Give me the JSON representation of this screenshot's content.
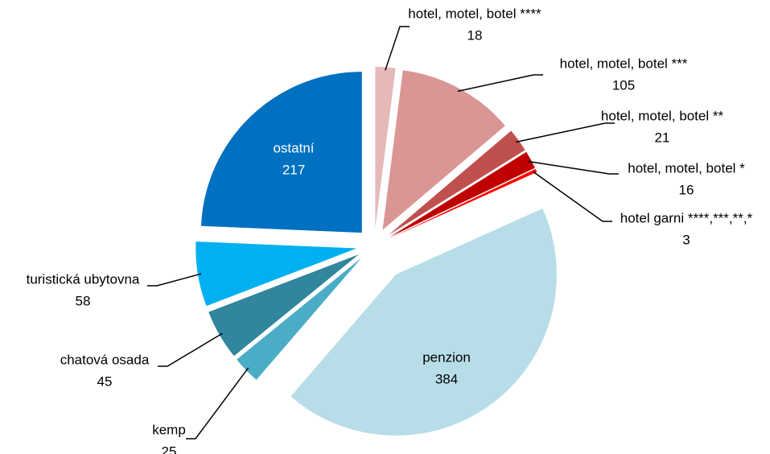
{
  "chart_data": {
    "type": "pie",
    "categories": [
      "hotel, motel, botel ****",
      "hotel, motel, botel ***",
      "hotel, motel, botel **",
      "hotel, motel, botel *",
      "hotel garni ****,***,**,*",
      "penzion",
      "kemp",
      "chatová osada",
      "turistická ubytovna",
      "ostatní"
    ],
    "values": [
      18,
      105,
      21,
      16,
      3,
      384,
      25,
      45,
      58,
      217
    ],
    "colors": [
      "#e6b9b8",
      "#d99694",
      "#c0504d",
      "#c00000",
      "#ff0000",
      "#b7dde8",
      "#4bacc6",
      "#31859c",
      "#00b0f0",
      "#0070c0"
    ]
  }
}
